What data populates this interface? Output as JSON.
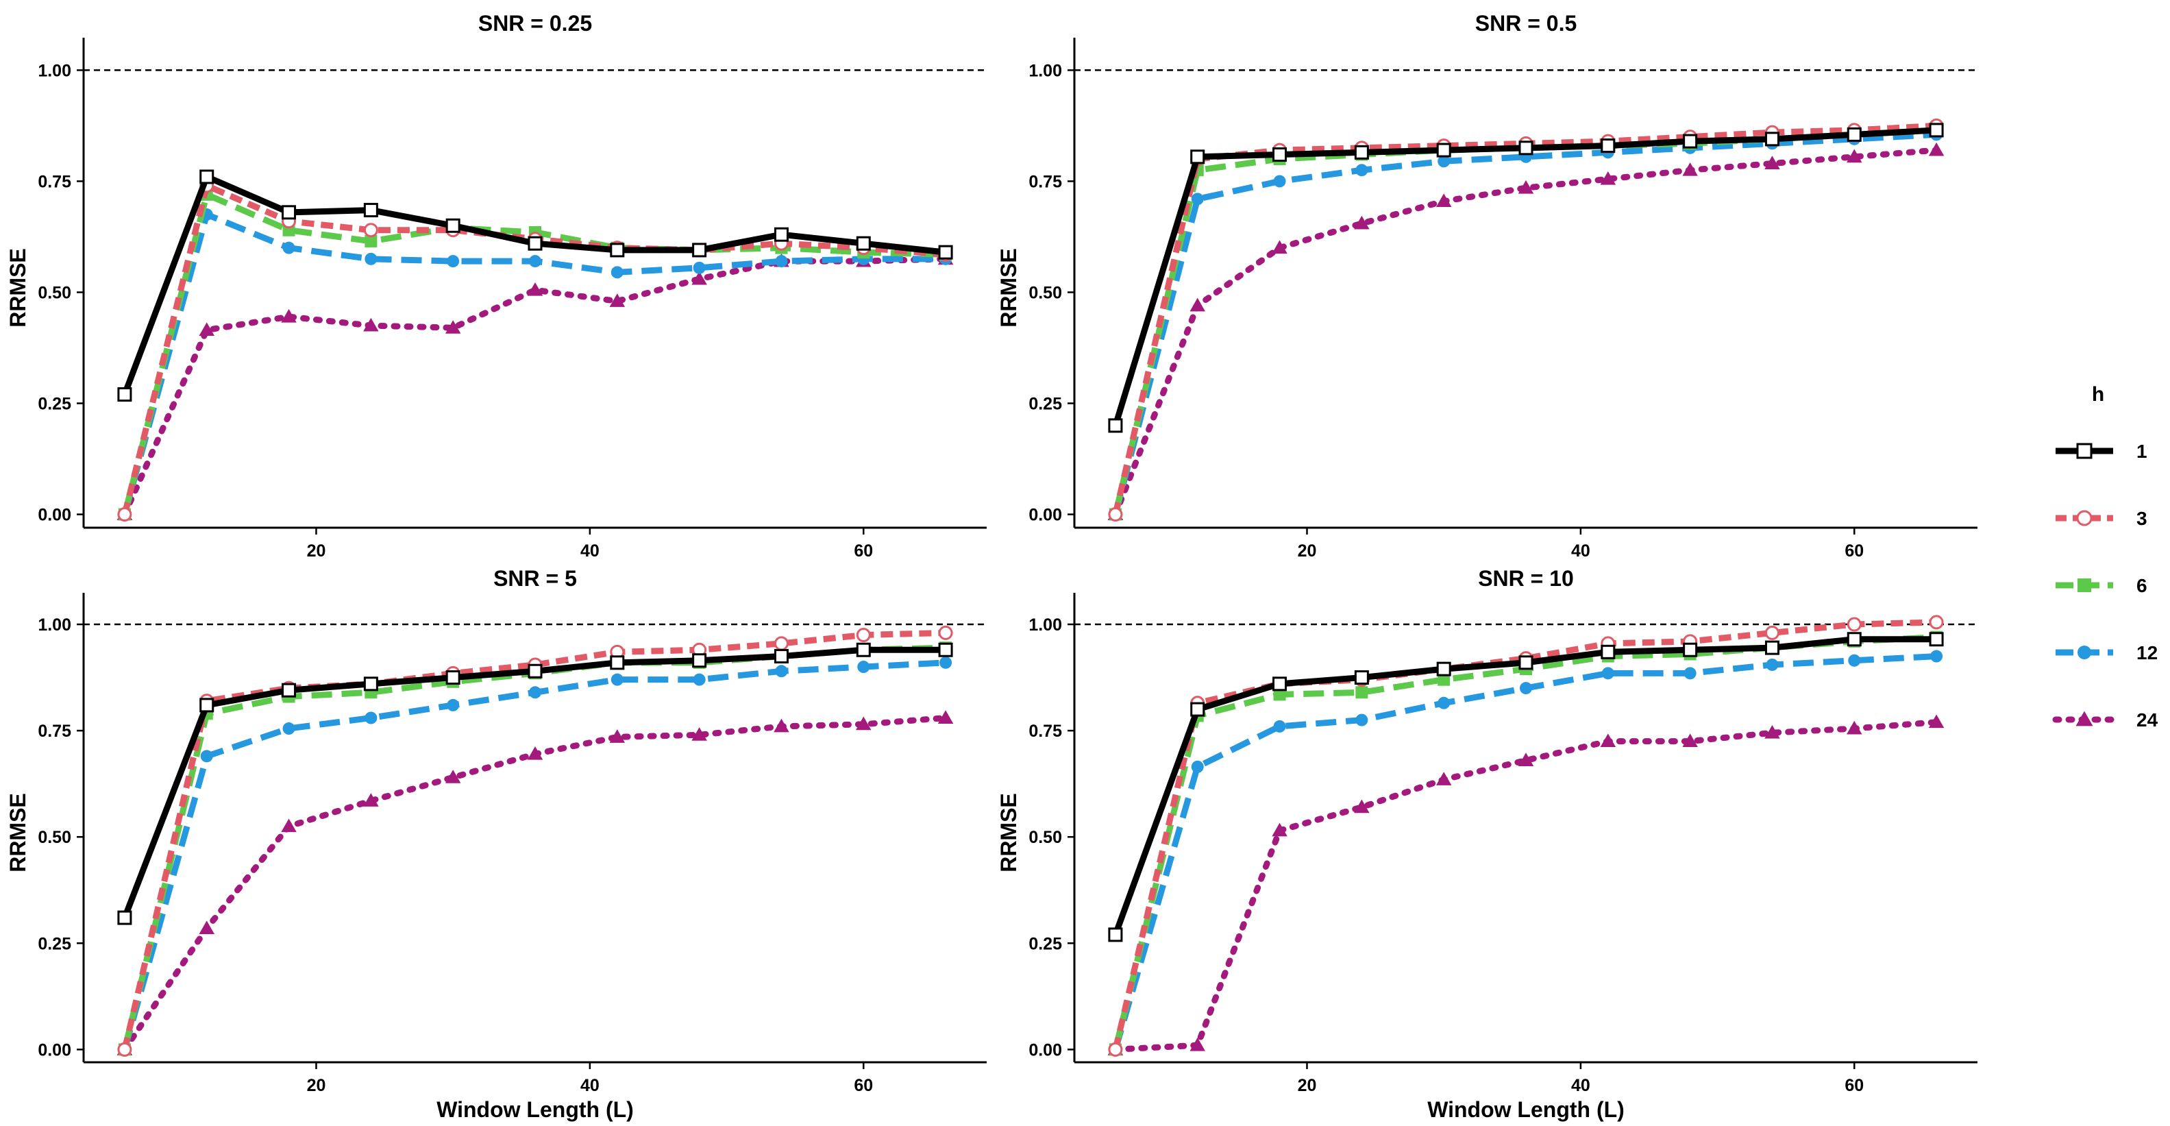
{
  "legend": {
    "title": "h",
    "entries": [
      {
        "label": "1",
        "color": "#000000",
        "marker": "open-square",
        "dash": "solid"
      },
      {
        "label": "3",
        "color": "#E15A66",
        "marker": "open-circle",
        "dash": "short-dash"
      },
      {
        "label": "6",
        "color": "#5DC94A",
        "marker": "filled-square",
        "dash": "long-dash"
      },
      {
        "label": "12",
        "color": "#2698E0",
        "marker": "filled-circle",
        "dash": "long-dash"
      },
      {
        "label": "24",
        "color": "#A4197C",
        "marker": "filled-triangle",
        "dash": "dotted"
      }
    ]
  },
  "chart_data": [
    {
      "type": "line",
      "title": "SNR = 0.25",
      "xlabel": "",
      "ylabel": "RRMSE",
      "xlim": [
        3,
        69
      ],
      "ylim": [
        -0.03,
        1.05
      ],
      "xticks": [
        "20",
        "40",
        "60"
      ],
      "yticks": [
        "0.00",
        "0.25",
        "0.50",
        "0.75",
        "1.00"
      ],
      "reference_line": 1.0,
      "x": [
        6,
        12,
        18,
        24,
        30,
        36,
        42,
        48,
        54,
        60,
        66
      ],
      "series": [
        {
          "name": "1",
          "values": [
            0.27,
            0.76,
            0.68,
            0.685,
            0.65,
            0.61,
            0.595,
            0.595,
            0.63,
            0.61,
            0.59
          ]
        },
        {
          "name": "3",
          "values": [
            0.0,
            0.74,
            0.66,
            0.64,
            0.64,
            0.62,
            0.6,
            0.595,
            0.61,
            0.6,
            0.585
          ]
        },
        {
          "name": "6",
          "values": [
            0.0,
            0.72,
            0.64,
            0.615,
            0.645,
            0.635,
            0.6,
            0.595,
            0.6,
            0.59,
            0.585
          ]
        },
        {
          "name": "12",
          "values": [
            0.0,
            0.675,
            0.6,
            0.575,
            0.57,
            0.57,
            0.545,
            0.555,
            0.57,
            0.575,
            0.575
          ]
        },
        {
          "name": "24",
          "values": [
            0.0,
            0.415,
            0.445,
            0.425,
            0.42,
            0.505,
            0.48,
            0.53,
            0.57,
            0.57,
            0.575
          ]
        }
      ],
      "grid": false
    },
    {
      "type": "line",
      "title": "SNR = 0.5",
      "xlabel": "",
      "ylabel": "RRMSE",
      "xlim": [
        3,
        69
      ],
      "ylim": [
        -0.03,
        1.05
      ],
      "xticks": [
        "20",
        "40",
        "60"
      ],
      "yticks": [
        "0.00",
        "0.25",
        "0.50",
        "0.75",
        "1.00"
      ],
      "reference_line": 1.0,
      "x": [
        6,
        12,
        18,
        24,
        30,
        36,
        42,
        48,
        54,
        60,
        66
      ],
      "series": [
        {
          "name": "1",
          "values": [
            0.2,
            0.805,
            0.81,
            0.815,
            0.82,
            0.825,
            0.83,
            0.84,
            0.845,
            0.855,
            0.865
          ]
        },
        {
          "name": "3",
          "values": [
            0.0,
            0.8,
            0.82,
            0.825,
            0.83,
            0.835,
            0.84,
            0.85,
            0.86,
            0.865,
            0.875
          ]
        },
        {
          "name": "6",
          "values": [
            0.0,
            0.775,
            0.8,
            0.81,
            0.82,
            0.825,
            0.83,
            0.835,
            0.845,
            0.855,
            0.865
          ]
        },
        {
          "name": "12",
          "values": [
            0.0,
            0.71,
            0.75,
            0.775,
            0.795,
            0.805,
            0.815,
            0.825,
            0.835,
            0.845,
            0.855
          ]
        },
        {
          "name": "24",
          "values": [
            0.0,
            0.47,
            0.6,
            0.655,
            0.705,
            0.735,
            0.755,
            0.775,
            0.79,
            0.805,
            0.82
          ]
        }
      ],
      "grid": false
    },
    {
      "type": "line",
      "title": "SNR = 5",
      "xlabel": "Window Length (L)",
      "ylabel": "RRMSE",
      "xlim": [
        3,
        69
      ],
      "ylim": [
        -0.03,
        1.05
      ],
      "xticks": [
        "20",
        "40",
        "60"
      ],
      "yticks": [
        "0.00",
        "0.25",
        "0.50",
        "0.75",
        "1.00"
      ],
      "reference_line": 1.0,
      "x": [
        6,
        12,
        18,
        24,
        30,
        36,
        42,
        48,
        54,
        60,
        66
      ],
      "series": [
        {
          "name": "1",
          "values": [
            0.31,
            0.81,
            0.845,
            0.86,
            0.875,
            0.89,
            0.91,
            0.915,
            0.925,
            0.94,
            0.94
          ]
        },
        {
          "name": "3",
          "values": [
            0.0,
            0.82,
            0.85,
            0.86,
            0.885,
            0.905,
            0.935,
            0.94,
            0.955,
            0.975,
            0.98
          ]
        },
        {
          "name": "6",
          "values": [
            0.0,
            0.79,
            0.83,
            0.84,
            0.865,
            0.885,
            0.91,
            0.91,
            0.925,
            0.94,
            0.945
          ]
        },
        {
          "name": "12",
          "values": [
            0.0,
            0.69,
            0.755,
            0.78,
            0.81,
            0.84,
            0.87,
            0.87,
            0.89,
            0.9,
            0.91
          ]
        },
        {
          "name": "24",
          "values": [
            0.0,
            0.285,
            0.525,
            0.585,
            0.64,
            0.695,
            0.735,
            0.74,
            0.76,
            0.765,
            0.78
          ]
        }
      ],
      "grid": false
    },
    {
      "type": "line",
      "title": "SNR = 10",
      "xlabel": "Window Length (L)",
      "ylabel": "RRMSE",
      "xlim": [
        3,
        69
      ],
      "ylim": [
        -0.03,
        1.05
      ],
      "xticks": [
        "20",
        "40",
        "60"
      ],
      "yticks": [
        "0.00",
        "0.25",
        "0.50",
        "0.75",
        "1.00"
      ],
      "reference_line": 1.0,
      "x": [
        6,
        12,
        18,
        24,
        30,
        36,
        42,
        48,
        54,
        60,
        66
      ],
      "series": [
        {
          "name": "1",
          "values": [
            0.27,
            0.8,
            0.86,
            0.875,
            0.895,
            0.91,
            0.935,
            0.94,
            0.945,
            0.965,
            0.965
          ]
        },
        {
          "name": "3",
          "values": [
            0.0,
            0.815,
            0.86,
            0.87,
            0.895,
            0.92,
            0.955,
            0.96,
            0.98,
            1.0,
            1.005
          ]
        },
        {
          "name": "6",
          "values": [
            0.0,
            0.785,
            0.835,
            0.84,
            0.87,
            0.895,
            0.925,
            0.93,
            0.945,
            0.96,
            0.97
          ]
        },
        {
          "name": "12",
          "values": [
            0.0,
            0.665,
            0.76,
            0.775,
            0.815,
            0.85,
            0.885,
            0.885,
            0.905,
            0.915,
            0.925
          ]
        },
        {
          "name": "24",
          "values": [
            0.0,
            0.01,
            0.515,
            0.57,
            0.635,
            0.68,
            0.725,
            0.725,
            0.745,
            0.755,
            0.77
          ]
        }
      ],
      "grid": false
    }
  ]
}
